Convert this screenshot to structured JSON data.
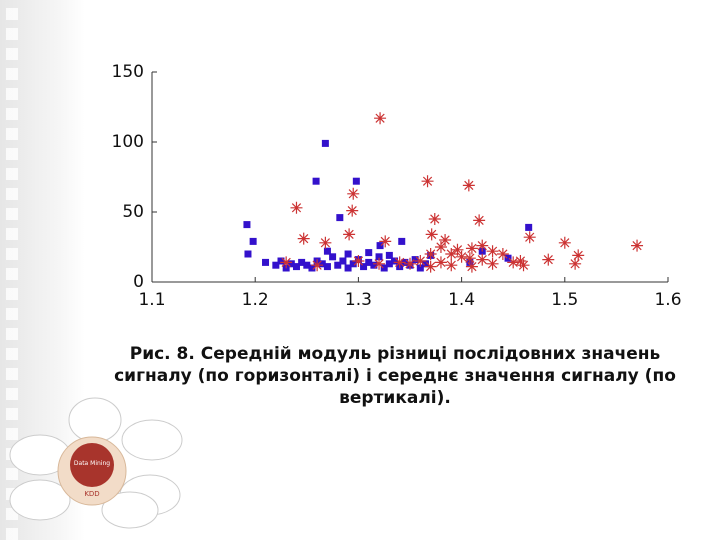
{
  "chart_data": {
    "type": "scatter",
    "xlim": [
      1.1,
      1.6
    ],
    "xticks": [
      1.1,
      1.2,
      1.3,
      1.4,
      1.5,
      1.6
    ],
    "ylim": [
      0,
      150
    ],
    "yticks": [
      0,
      50,
      100,
      150
    ],
    "series": [
      {
        "marker": "square",
        "color": "#3311cc",
        "x": [
          1.192,
          1.198,
          1.193,
          1.268,
          1.259,
          1.298,
          1.282,
          1.342,
          1.465,
          1.42,
          1.445,
          1.408,
          1.37,
          1.321,
          1.21,
          1.22,
          1.225,
          1.23,
          1.235,
          1.24,
          1.245,
          1.25,
          1.255,
          1.26,
          1.265,
          1.27,
          1.275,
          1.28,
          1.285,
          1.29,
          1.295,
          1.3,
          1.305,
          1.31,
          1.315,
          1.32,
          1.325,
          1.33,
          1.335,
          1.34,
          1.345,
          1.35,
          1.355,
          1.36,
          1.365,
          1.27,
          1.29,
          1.31,
          1.33
        ],
        "y": [
          41,
          29,
          20,
          99,
          72,
          72,
          46,
          29,
          39,
          22,
          17,
          14,
          19,
          26,
          14,
          12,
          15,
          10,
          13,
          11,
          14,
          12,
          10,
          15,
          13,
          11,
          18,
          12,
          15,
          10,
          13,
          16,
          11,
          14,
          12,
          18,
          10,
          13,
          15,
          11,
          14,
          12,
          16,
          10,
          13,
          22,
          20,
          21,
          19
        ]
      },
      {
        "marker": "asterisk",
        "color": "#cc3333",
        "x": [
          1.321,
          1.24,
          1.295,
          1.367,
          1.407,
          1.294,
          1.374,
          1.417,
          1.247,
          1.268,
          1.291,
          1.326,
          1.384,
          1.371,
          1.466,
          1.5,
          1.513,
          1.57,
          1.484,
          1.457,
          1.43,
          1.408,
          1.396,
          1.42,
          1.38,
          1.39,
          1.4,
          1.41,
          1.37,
          1.36,
          1.35,
          1.44,
          1.45,
          1.43,
          1.26,
          1.23,
          1.3,
          1.32,
          1.38,
          1.41,
          1.51,
          1.39,
          1.42,
          1.46,
          1.34,
          1.37
        ],
        "y": [
          117,
          53,
          63,
          72,
          69,
          51,
          45,
          44,
          31,
          28,
          34,
          29,
          30,
          34,
          32,
          28,
          19,
          26,
          16,
          15,
          13,
          17,
          23,
          26,
          14,
          12,
          18,
          11,
          20,
          15,
          13,
          20,
          14,
          22,
          12,
          14,
          15,
          13,
          25,
          24,
          13,
          20,
          16,
          12,
          14,
          11
        ]
      }
    ],
    "caption": "Рис. 8. Середній модуль різниці послідовних значень сигналу (по горизонталі) і середнє значення сигналу (по вертикалі)."
  },
  "logo": {
    "center": "Data Mining",
    "bottom": "KDD"
  }
}
